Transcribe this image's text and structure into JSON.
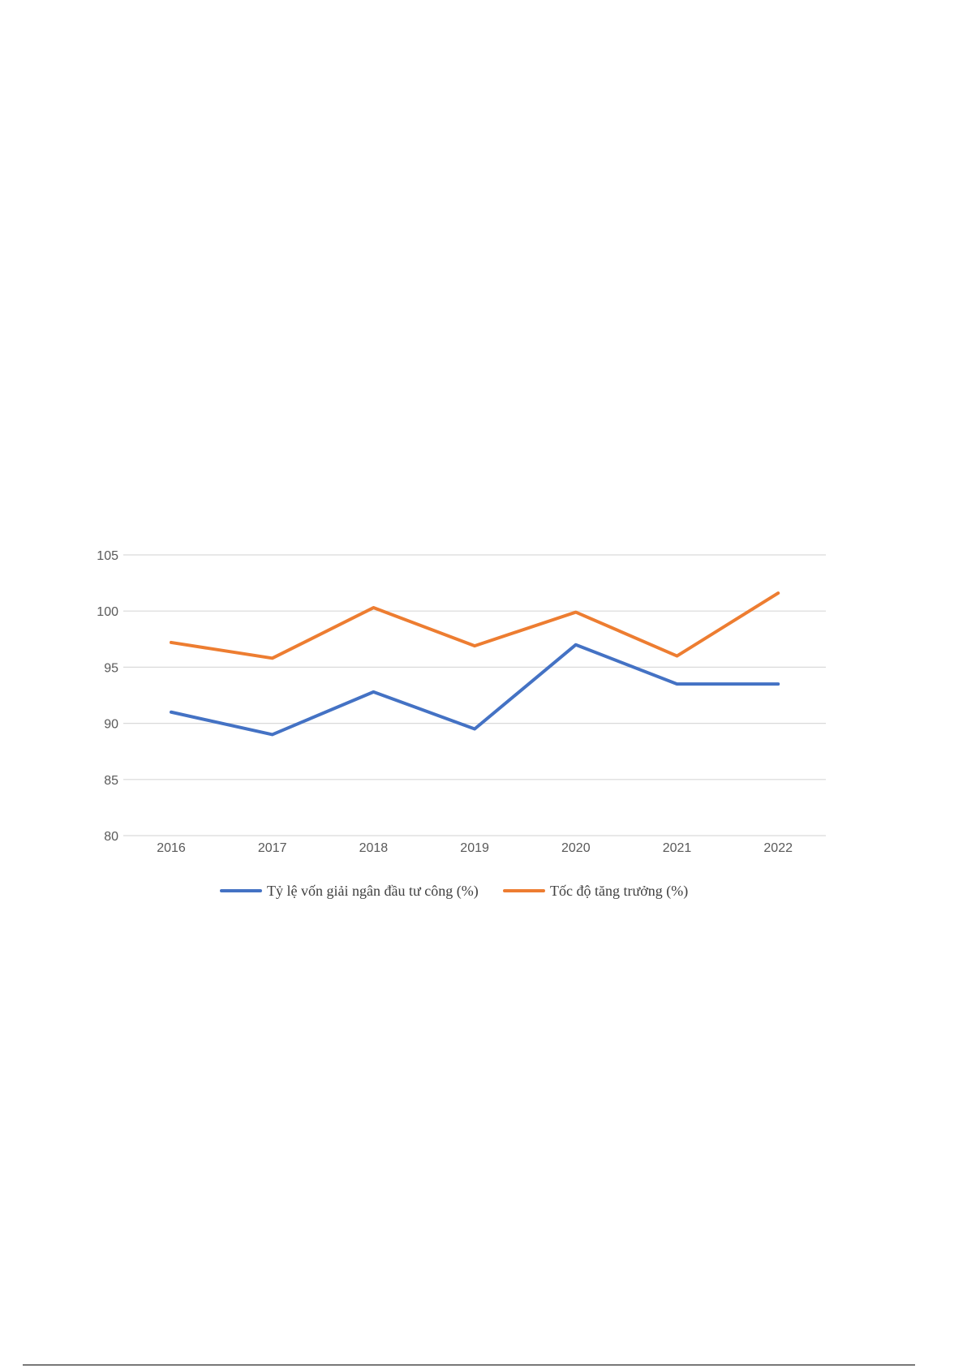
{
  "chart_data": {
    "type": "line",
    "categories": [
      "2016",
      "2017",
      "2018",
      "2019",
      "2020",
      "2021",
      "2022"
    ],
    "series": [
      {
        "name": "Tỷ lệ vốn giải ngân đầu tư công (%)",
        "values": [
          91.0,
          89.0,
          92.8,
          89.5,
          97.0,
          93.5,
          93.5
        ],
        "color": "#4472C4"
      },
      {
        "name": "Tốc độ tăng trưởng (%)",
        "values": [
          97.2,
          95.8,
          100.3,
          96.9,
          99.9,
          96.0,
          101.6
        ],
        "color": "#ED7D31"
      }
    ],
    "title": "",
    "xlabel": "",
    "ylabel": "",
    "ylim": [
      80,
      105
    ],
    "yticks": [
      "80",
      "85",
      "90",
      "95",
      "100",
      "105"
    ],
    "grid": true,
    "gridline_color": "#d9d9d9",
    "legend_position": "bottom"
  }
}
